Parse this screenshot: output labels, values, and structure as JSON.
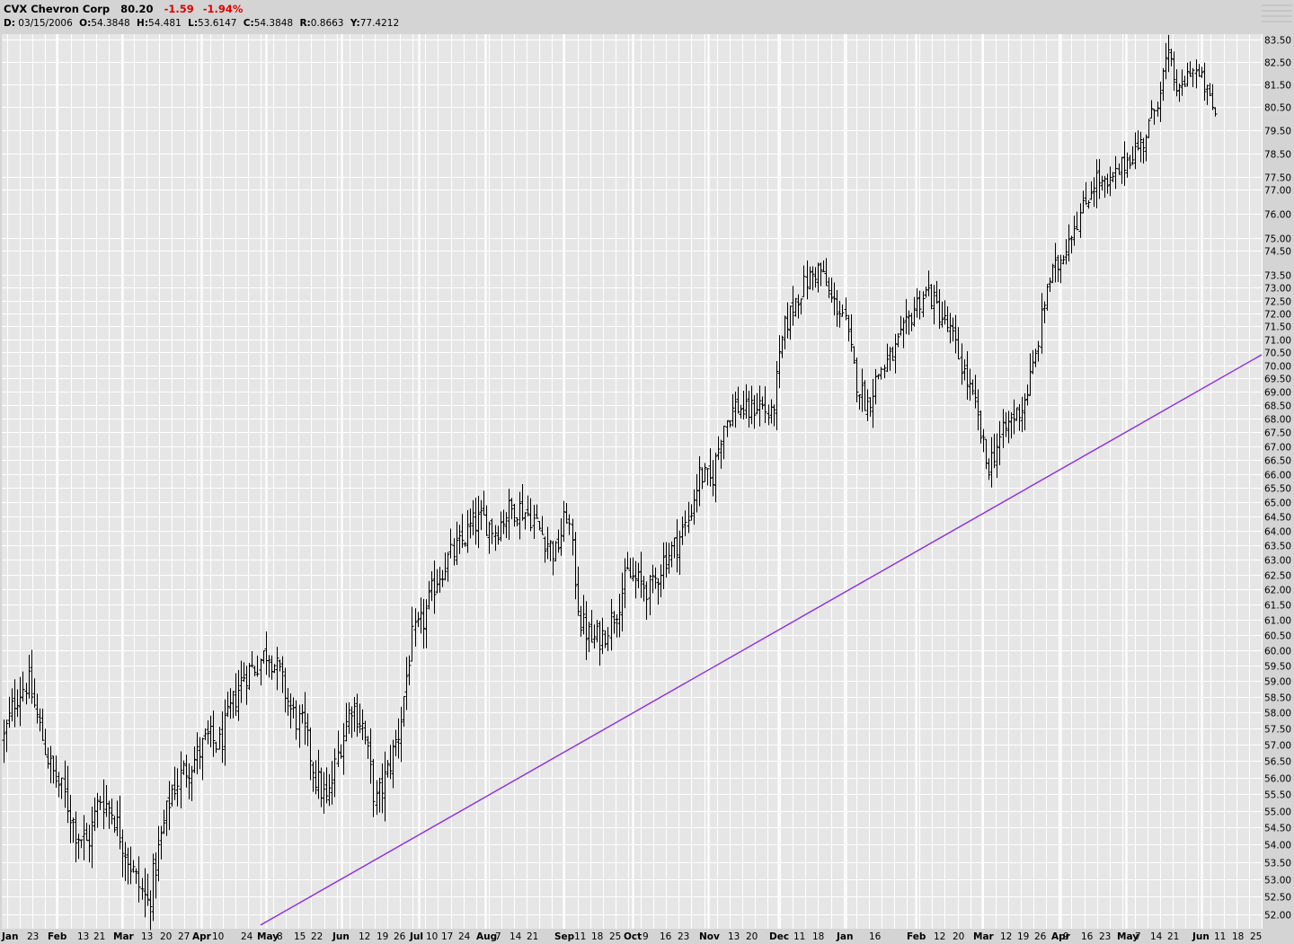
{
  "header": {
    "symbol": "CVX Chevron Corp",
    "last": "80.20",
    "change": "-1.59",
    "change_pct": "-1.94%",
    "d_label": "D:",
    "d_val": "03/15/2006",
    "o_label": "O:",
    "o_val": "54.3848",
    "h_label": "H:",
    "h_val": "54.481",
    "l_label": "L:",
    "l_val": "53.6147",
    "c_label": "C:",
    "c_val": "54.3848",
    "r_label": "R:",
    "r_val": "0.8663",
    "y_label": "Y:",
    "y_val": "77.4212"
  },
  "colors": {
    "background": "#e6e6e6",
    "grid": "#ffffff",
    "bars": "#000000",
    "trendline": "#8a2be2",
    "negative": "#e00000"
  },
  "chart_data": {
    "type": "ohlc",
    "y_scale": "log",
    "ylim": [
      51.7,
      83.8
    ],
    "y_ticks": [
      "52.00",
      "52.50",
      "53.00",
      "53.50",
      "54.00",
      "54.50",
      "55.00",
      "55.50",
      "56.00",
      "56.50",
      "57.00",
      "57.50",
      "58.00",
      "58.50",
      "59.00",
      "59.50",
      "60.00",
      "60.50",
      "61.00",
      "61.50",
      "62.00",
      "62.50",
      "63.00",
      "63.50",
      "64.00",
      "64.50",
      "65.00",
      "65.50",
      "66.00",
      "66.50",
      "67.00",
      "67.50",
      "68.00",
      "68.50",
      "69.00",
      "69.50",
      "70.00",
      "70.50",
      "71.00",
      "71.50",
      "72.00",
      "72.50",
      "73.00",
      "73.50",
      "74.50",
      "75.00",
      "76.00",
      "77.00",
      "77.50",
      "78.50",
      "79.50",
      "80.50",
      "81.50",
      "82.50",
      "83.50"
    ],
    "x_ticks": [
      "Jan",
      "23",
      "Feb",
      "13",
      "21",
      "Mar",
      "13",
      "20",
      "27",
      "Apr",
      "10",
      "24",
      "May",
      "8",
      "15",
      "22",
      "Jun",
      "12",
      "19",
      "26",
      "Jul",
      "10",
      "17",
      "24",
      "Aug",
      "7",
      "14",
      "21",
      "Sep",
      "11",
      "18",
      "25",
      "Oct",
      "9",
      "16",
      "23",
      "Nov",
      "13",
      "20",
      "Dec",
      "11",
      "18",
      "Jan",
      "16",
      "Feb",
      "12",
      "20",
      "Mar",
      "12",
      "19",
      "26",
      "Apr",
      "9",
      "16",
      "23",
      "May",
      "7",
      "14",
      "21",
      "Jun",
      "11",
      "18",
      "25"
    ],
    "x_tick_pixel_note": "",
    "anchors_close": [
      57.2,
      58.5,
      59.0,
      57.5,
      56.2,
      55.5,
      54.4,
      54.0,
      55.4,
      55.0,
      54.0,
      53.0,
      52.3,
      54.0,
      55.6,
      56.2,
      56.6,
      57.2,
      57.0,
      58.2,
      59.2,
      59.5,
      60.0,
      59.2,
      58.0,
      57.5,
      56.0,
      55.2,
      57.0,
      58.3,
      57.5,
      55.2,
      56.2,
      57.5,
      60.3,
      61.0,
      62.3,
      63.0,
      63.5,
      64.2,
      64.4,
      64.0,
      64.7,
      64.8,
      64.5,
      63.8,
      63.2,
      64.7,
      61.0,
      60.3,
      60.5,
      61.3,
      62.5,
      62.2,
      62.0,
      63.0,
      63.5,
      64.3,
      66.0,
      65.7,
      67.8,
      68.5,
      68.2,
      68.6,
      68.0,
      71.3,
      72.5,
      73.3,
      73.8,
      72.5,
      72.0,
      69.5,
      68.5,
      69.8,
      70.3,
      71.2,
      72.3,
      72.9,
      72.0,
      71.2,
      69.8,
      68.4,
      66.2,
      67.2,
      68.0,
      68.5,
      70.2,
      73.2,
      74.0,
      75.3,
      76.2,
      77.5,
      77.0,
      77.8,
      78.5,
      79.0,
      80.5,
      82.8,
      81.0,
      82.3,
      81.5,
      80.2
    ],
    "last_close": 80.2,
    "trendline": {
      "from": {
        "date": "May",
        "value": 51.7
      },
      "to": {
        "date": "Jun 25",
        "value": 70.4
      }
    }
  }
}
